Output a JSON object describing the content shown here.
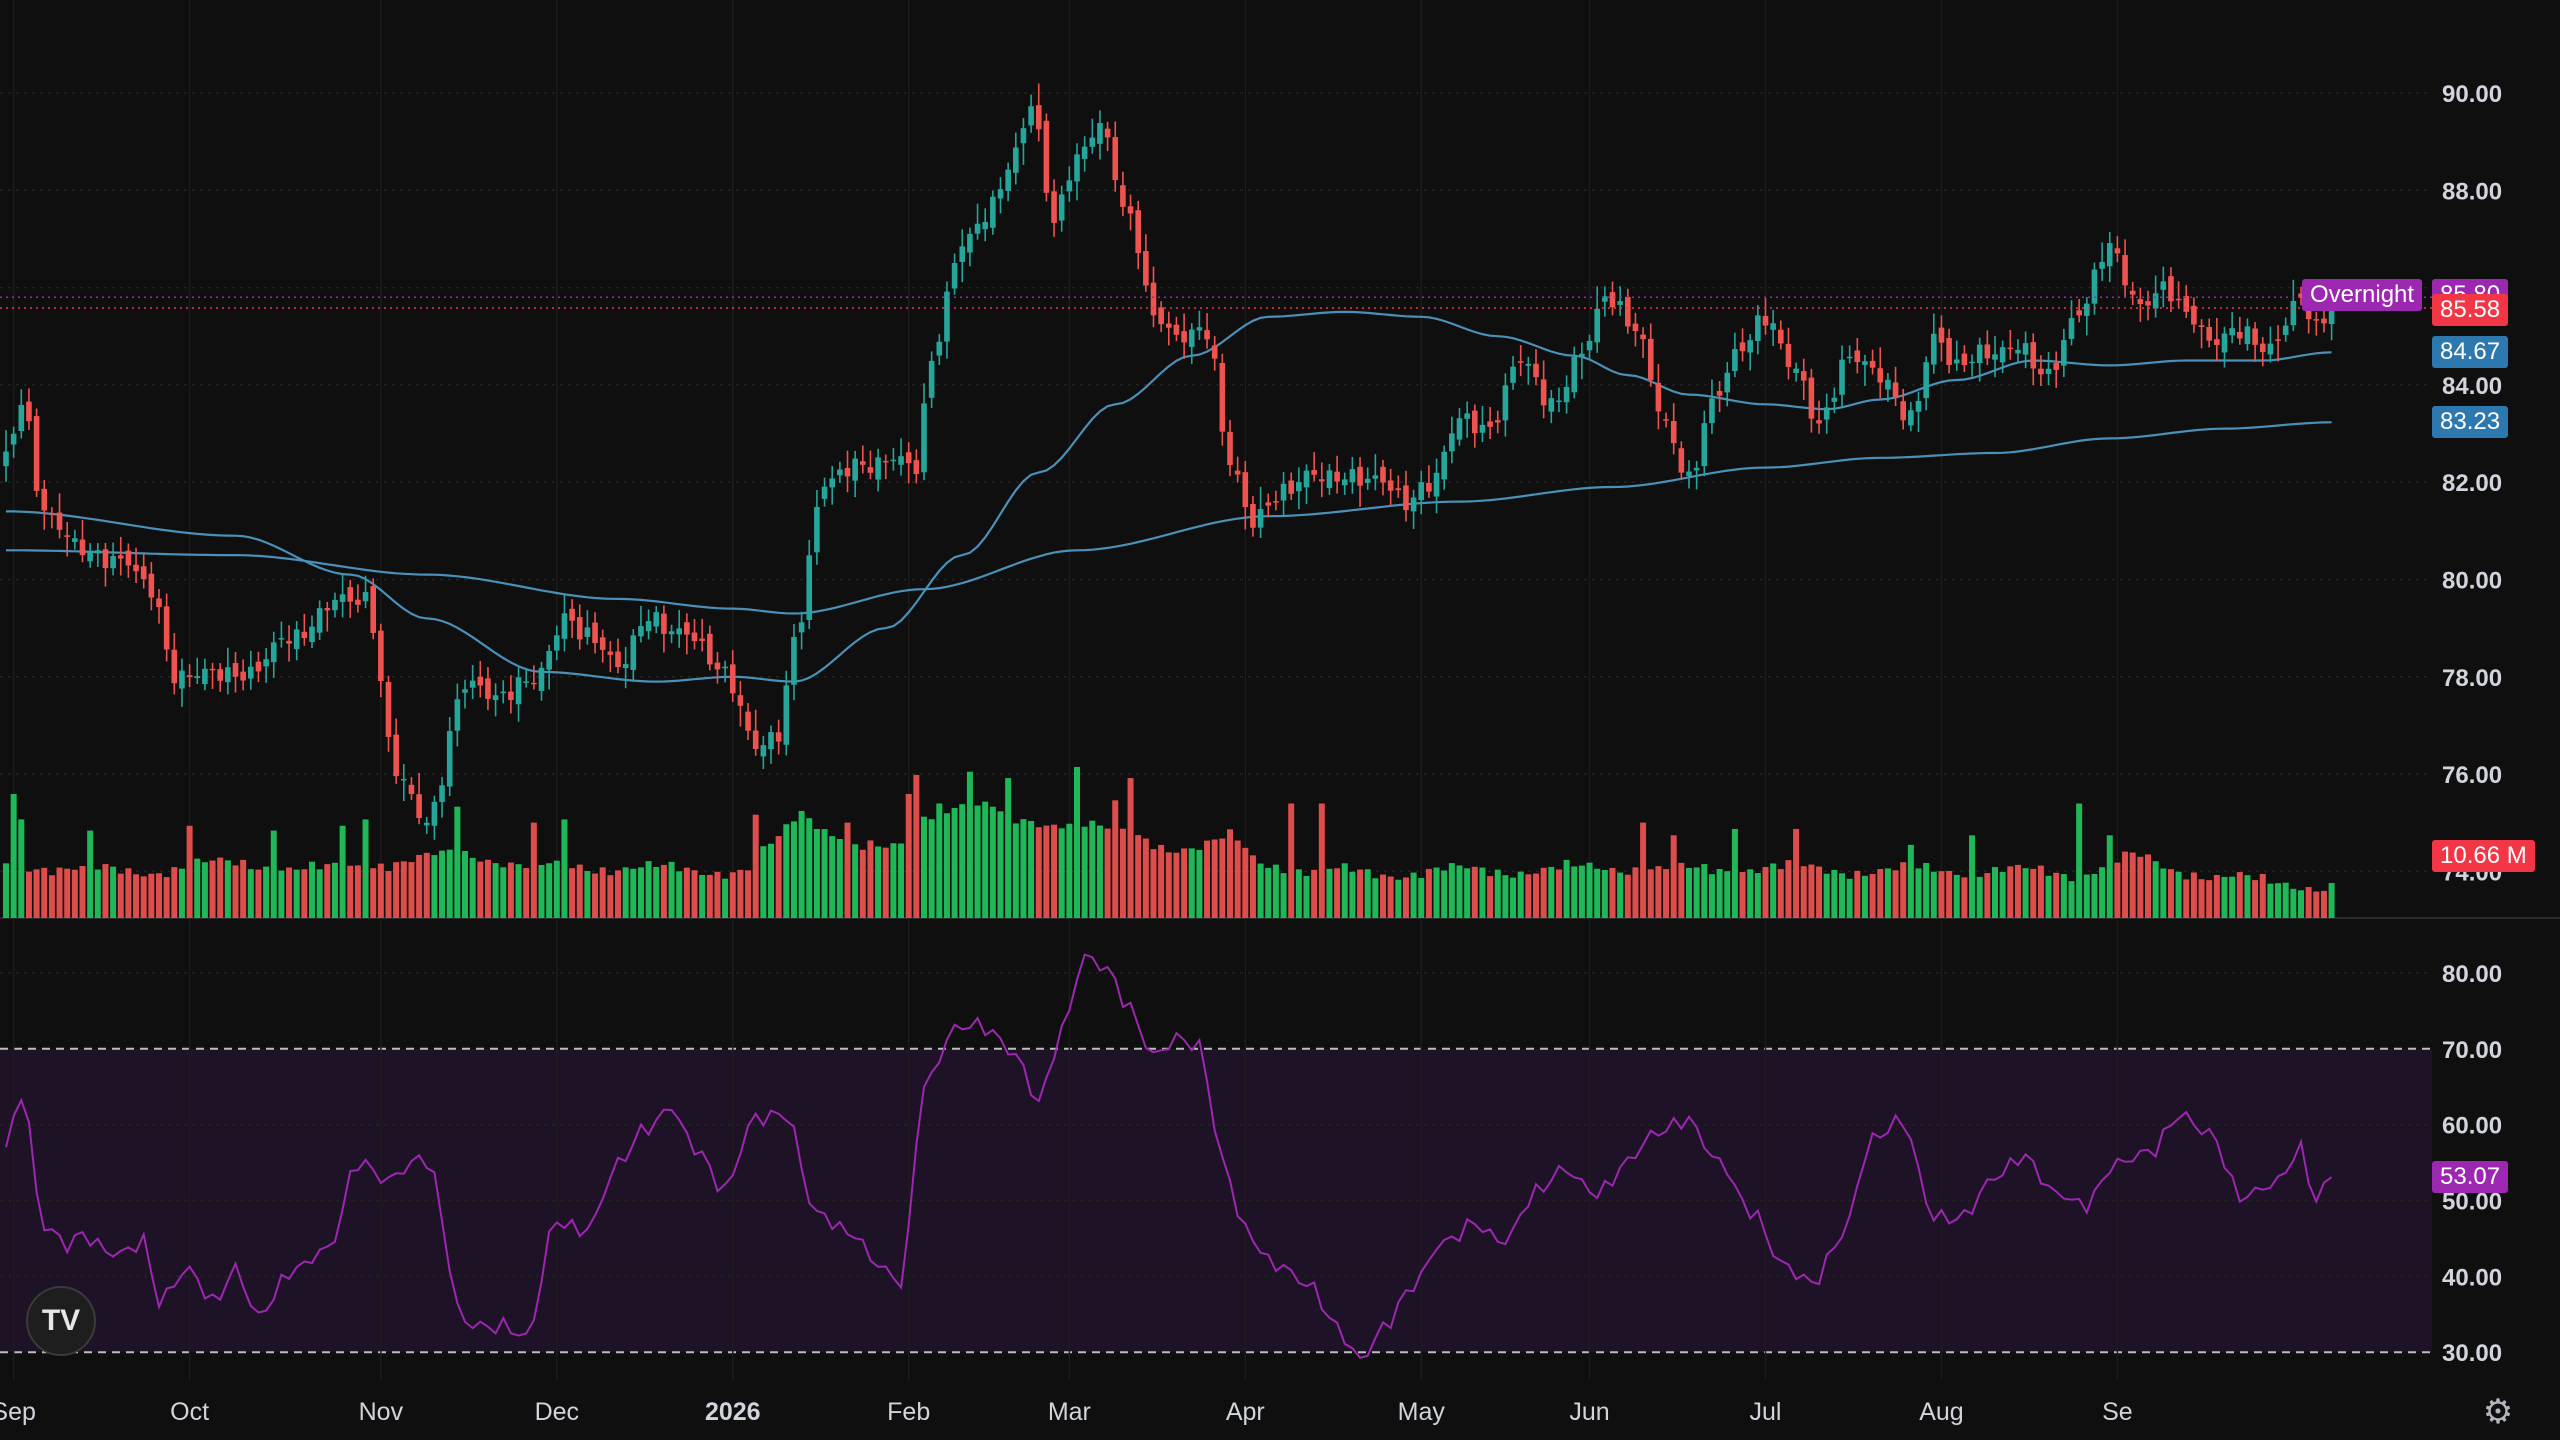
{
  "chart_data": {
    "type": "candlestick",
    "price_axis": {
      "ylim": [
        73.0,
        91.5
      ],
      "ticks": [
        "74.00",
        "76.00",
        "78.00",
        "80.00",
        "82.00",
        "84.00",
        "86.00",
        "88.00",
        "90.00"
      ]
    },
    "rsi_axis": {
      "ylim": [
        27,
        85
      ],
      "ticks": [
        "30.00",
        "40.00",
        "50.00",
        "60.00",
        "70.00",
        "80.00"
      ],
      "band": [
        30,
        70
      ]
    },
    "x_labels": [
      {
        "label": "Sep",
        "index": 1
      },
      {
        "label": "Oct",
        "index": 24
      },
      {
        "label": "Nov",
        "index": 49
      },
      {
        "label": "Dec",
        "index": 72
      },
      {
        "label": "2026",
        "index": 95,
        "bold": true
      },
      {
        "label": "Feb",
        "index": 118
      },
      {
        "label": "Mar",
        "index": 139
      },
      {
        "label": "Apr",
        "index": 162
      },
      {
        "label": "May",
        "index": 185
      },
      {
        "label": "Jun",
        "index": 207
      },
      {
        "label": "Jul",
        "index": 230
      },
      {
        "label": "Aug",
        "index": 253
      },
      {
        "label": "Se",
        "index": 276
      }
    ],
    "price_checkpoints": [
      [
        0,
        82.5
      ],
      [
        2,
        83.5
      ],
      [
        5,
        81.2
      ],
      [
        10,
        80.8
      ],
      [
        15,
        80.4
      ],
      [
        19,
        79.6
      ],
      [
        22,
        78.0
      ],
      [
        26,
        78.3
      ],
      [
        32,
        77.9
      ],
      [
        37,
        78.8
      ],
      [
        43,
        79.7
      ],
      [
        47,
        79.4
      ],
      [
        51,
        76.0
      ],
      [
        55,
        75.2
      ],
      [
        60,
        77.8
      ],
      [
        64,
        77.4
      ],
      [
        69,
        78.1
      ],
      [
        73,
        79.3
      ],
      [
        76,
        78.7
      ],
      [
        80,
        78.1
      ],
      [
        84,
        79.4
      ],
      [
        88,
        79.0
      ],
      [
        94,
        77.9
      ],
      [
        98,
        76.7
      ],
      [
        101,
        77.0
      ],
      [
        103,
        78.8
      ],
      [
        107,
        81.8
      ],
      [
        112,
        82.4
      ],
      [
        116,
        82.7
      ],
      [
        119,
        82.3
      ],
      [
        121,
        84.4
      ],
      [
        125,
        86.8
      ],
      [
        128,
        87.6
      ],
      [
        131,
        88.6
      ],
      [
        134,
        89.7
      ],
      [
        137,
        87.2
      ],
      [
        140,
        88.6
      ],
      [
        143,
        89.5
      ],
      [
        147,
        87.5
      ],
      [
        150,
        85.3
      ],
      [
        153,
        84.8
      ],
      [
        157,
        85.2
      ],
      [
        160,
        82.6
      ],
      [
        163,
        81.2
      ],
      [
        167,
        81.6
      ],
      [
        171,
        82.2
      ],
      [
        175,
        82.3
      ],
      [
        179,
        82.0
      ],
      [
        183,
        81.4
      ],
      [
        186,
        82.0
      ],
      [
        190,
        83.5
      ],
      [
        194,
        83.0
      ],
      [
        198,
        84.4
      ],
      [
        202,
        83.7
      ],
      [
        206,
        84.8
      ],
      [
        209,
        85.7
      ],
      [
        213,
        85.0
      ],
      [
        217,
        83.3
      ],
      [
        220,
        82.2
      ],
      [
        223,
        83.6
      ],
      [
        227,
        84.6
      ],
      [
        230,
        85.4
      ],
      [
        234,
        84.5
      ],
      [
        237,
        83.2
      ],
      [
        241,
        84.4
      ],
      [
        245,
        84.2
      ],
      [
        249,
        83.5
      ],
      [
        252,
        85.0
      ],
      [
        255,
        84.2
      ],
      [
        259,
        84.6
      ],
      [
        263,
        85.0
      ],
      [
        267,
        84.2
      ],
      [
        271,
        85.3
      ],
      [
        275,
        86.9
      ],
      [
        279,
        85.8
      ],
      [
        282,
        86.0
      ],
      [
        285,
        85.3
      ],
      [
        288,
        84.8
      ],
      [
        292,
        85.3
      ],
      [
        296,
        84.8
      ],
      [
        300,
        85.6
      ],
      [
        302,
        85.0
      ],
      [
        304,
        85.58
      ]
    ],
    "ma50_checkpoints": [
      [
        0,
        81.4
      ],
      [
        30,
        80.9
      ],
      [
        45,
        80.1
      ],
      [
        55,
        79.2
      ],
      [
        70,
        78.1
      ],
      [
        85,
        77.9
      ],
      [
        95,
        78.0
      ],
      [
        103,
        77.9
      ],
      [
        115,
        79.0
      ],
      [
        125,
        80.5
      ],
      [
        135,
        82.2
      ],
      [
        145,
        83.6
      ],
      [
        155,
        84.6
      ],
      [
        165,
        85.4
      ],
      [
        175,
        85.5
      ],
      [
        185,
        85.4
      ],
      [
        195,
        85.0
      ],
      [
        205,
        84.6
      ],
      [
        212,
        84.2
      ],
      [
        220,
        83.8
      ],
      [
        230,
        83.6
      ],
      [
        238,
        83.5
      ],
      [
        245,
        83.7
      ],
      [
        255,
        84.1
      ],
      [
        265,
        84.5
      ],
      [
        275,
        84.4
      ],
      [
        285,
        84.5
      ],
      [
        295,
        84.5
      ],
      [
        304,
        84.67
      ]
    ],
    "ma200_checkpoints": [
      [
        0,
        80.6
      ],
      [
        30,
        80.5
      ],
      [
        55,
        80.1
      ],
      [
        80,
        79.6
      ],
      [
        95,
        79.4
      ],
      [
        103,
        79.3
      ],
      [
        120,
        79.8
      ],
      [
        140,
        80.6
      ],
      [
        165,
        81.3
      ],
      [
        190,
        81.6
      ],
      [
        210,
        81.9
      ],
      [
        230,
        82.3
      ],
      [
        245,
        82.5
      ],
      [
        260,
        82.6
      ],
      [
        275,
        82.9
      ],
      [
        290,
        83.1
      ],
      [
        304,
        83.23
      ]
    ],
    "rsi_checkpoints": [
      [
        0,
        58
      ],
      [
        2,
        65
      ],
      [
        5,
        46
      ],
      [
        8,
        43
      ],
      [
        10,
        45
      ],
      [
        14,
        44
      ],
      [
        18,
        45
      ],
      [
        20,
        36
      ],
      [
        24,
        40
      ],
      [
        27,
        37
      ],
      [
        30,
        42
      ],
      [
        33,
        35
      ],
      [
        38,
        40
      ],
      [
        42,
        44
      ],
      [
        46,
        56
      ],
      [
        50,
        52
      ],
      [
        55,
        55
      ],
      [
        60,
        35
      ],
      [
        64,
        33
      ],
      [
        68,
        31
      ],
      [
        72,
        48
      ],
      [
        76,
        47
      ],
      [
        80,
        54
      ],
      [
        84,
        59
      ],
      [
        87,
        63
      ],
      [
        90,
        58
      ],
      [
        94,
        51
      ],
      [
        98,
        60
      ],
      [
        102,
        62
      ],
      [
        106,
        49
      ],
      [
        110,
        45
      ],
      [
        114,
        41
      ],
      [
        117,
        40
      ],
      [
        120,
        66
      ],
      [
        124,
        72
      ],
      [
        128,
        72
      ],
      [
        132,
        70
      ],
      [
        135,
        64
      ],
      [
        138,
        72
      ],
      [
        141,
        81
      ],
      [
        144,
        80
      ],
      [
        147,
        76
      ],
      [
        150,
        70
      ],
      [
        153,
        71
      ],
      [
        156,
        69
      ],
      [
        159,
        55
      ],
      [
        162,
        47
      ],
      [
        166,
        42
      ],
      [
        170,
        38
      ],
      [
        174,
        33
      ],
      [
        177,
        30
      ],
      [
        180,
        34
      ],
      [
        184,
        38
      ],
      [
        188,
        44
      ],
      [
        192,
        48
      ],
      [
        196,
        45
      ],
      [
        200,
        50
      ],
      [
        204,
        54
      ],
      [
        208,
        52
      ],
      [
        212,
        55
      ],
      [
        216,
        58
      ],
      [
        220,
        61
      ],
      [
        224,
        56
      ],
      [
        228,
        48
      ],
      [
        232,
        41
      ],
      [
        236,
        40
      ],
      [
        240,
        46
      ],
      [
        244,
        57
      ],
      [
        248,
        60
      ],
      [
        252,
        49
      ],
      [
        256,
        48
      ],
      [
        260,
        52
      ],
      [
        264,
        56
      ],
      [
        268,
        52
      ],
      [
        272,
        49
      ],
      [
        276,
        54
      ],
      [
        280,
        57
      ],
      [
        284,
        62
      ],
      [
        288,
        58
      ],
      [
        292,
        50
      ],
      [
        296,
        53
      ],
      [
        300,
        57
      ],
      [
        302,
        49
      ],
      [
        304,
        53.07
      ]
    ],
    "volume_checkpoints": [
      [
        0,
        0.35
      ],
      [
        10,
        0.3
      ],
      [
        20,
        0.3
      ],
      [
        30,
        0.35
      ],
      [
        40,
        0.3
      ],
      [
        50,
        0.35
      ],
      [
        60,
        0.4
      ],
      [
        70,
        0.32
      ],
      [
        80,
        0.32
      ],
      [
        90,
        0.3
      ],
      [
        96,
        0.3
      ],
      [
        100,
        0.45
      ],
      [
        104,
        0.65
      ],
      [
        108,
        0.55
      ],
      [
        112,
        0.45
      ],
      [
        116,
        0.42
      ],
      [
        120,
        0.65
      ],
      [
        124,
        0.72
      ],
      [
        128,
        0.7
      ],
      [
        132,
        0.6
      ],
      [
        136,
        0.6
      ],
      [
        140,
        0.62
      ],
      [
        144,
        0.55
      ],
      [
        148,
        0.5
      ],
      [
        152,
        0.45
      ],
      [
        156,
        0.45
      ],
      [
        160,
        0.5
      ],
      [
        164,
        0.35
      ],
      [
        170,
        0.3
      ],
      [
        180,
        0.28
      ],
      [
        190,
        0.3
      ],
      [
        200,
        0.3
      ],
      [
        210,
        0.32
      ],
      [
        220,
        0.3
      ],
      [
        230,
        0.32
      ],
      [
        240,
        0.3
      ],
      [
        250,
        0.3
      ],
      [
        260,
        0.3
      ],
      [
        270,
        0.28
      ],
      [
        278,
        0.38
      ],
      [
        284,
        0.3
      ],
      [
        290,
        0.26
      ],
      [
        296,
        0.22
      ],
      [
        304,
        0.2
      ]
    ],
    "volume_spikes": [
      [
        1,
        0.78
      ],
      [
        2,
        0.62
      ],
      [
        11,
        0.55
      ],
      [
        24,
        0.58
      ],
      [
        35,
        0.55
      ],
      [
        44,
        0.58
      ],
      [
        47,
        0.62
      ],
      [
        59,
        0.7
      ],
      [
        69,
        0.6
      ],
      [
        73,
        0.62
      ],
      [
        98,
        0.65
      ],
      [
        110,
        0.6
      ],
      [
        118,
        0.78
      ],
      [
        119,
        0.9
      ],
      [
        122,
        0.72
      ],
      [
        126,
        0.92
      ],
      [
        131,
        0.88
      ],
      [
        140,
        0.95
      ],
      [
        145,
        0.74
      ],
      [
        147,
        0.88
      ],
      [
        168,
        0.72
      ],
      [
        172,
        0.72
      ],
      [
        214,
        0.6
      ],
      [
        218,
        0.52
      ],
      [
        226,
        0.56
      ],
      [
        234,
        0.56
      ],
      [
        249,
        0.46
      ],
      [
        257,
        0.52
      ],
      [
        271,
        0.72
      ],
      [
        275,
        0.52
      ]
    ],
    "annotations": {
      "overnight_label": "Overnight",
      "overnight_price": "85.80",
      "last_price": "85.58",
      "ma50_value": "84.67",
      "ma200_value": "83.23",
      "volume_value": "10.66 M",
      "rsi_value": "53.07"
    },
    "colors": {
      "background": "#0f0f0f",
      "up": "#26a69a",
      "up_bright": "#22c55e",
      "down": "#ef5350",
      "ma": "#4a90b8",
      "rsi": "#9c27b0",
      "rsi_band": "#1e1226",
      "overnight": "#9c27b0",
      "last_price": "#f23645",
      "ma_tag": "#2e78b0",
      "axis_text": "#d1d4dc"
    }
  },
  "branding": {
    "logo_text": "TV"
  },
  "icons": {
    "settings": "gear-icon"
  }
}
